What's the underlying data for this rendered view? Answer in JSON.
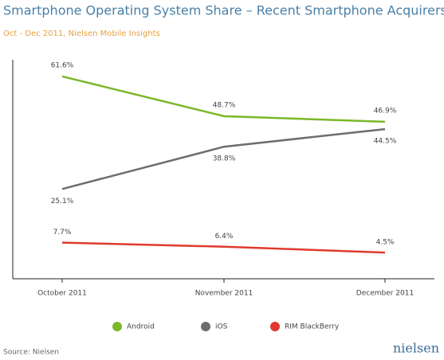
{
  "chart_data": {
    "type": "line",
    "title": "Smartphone Operating System Share – Recent Smartphone Acquirers",
    "subtitle": "Oct - Dec 2011, Nielsen Mobile Insights",
    "categories": [
      "October 2011",
      "November 2011",
      "December 2011"
    ],
    "series": [
      {
        "name": "Android",
        "color": "#7ab829",
        "values": [
          61.6,
          48.7,
          46.9
        ],
        "value_labels": [
          "61.6%",
          "48.7%",
          "46.9%"
        ]
      },
      {
        "name": "iOS",
        "color": "#6d6d6d",
        "values": [
          25.1,
          38.8,
          44.5
        ],
        "value_labels": [
          "25.1%",
          "38.8%",
          "44.5%"
        ]
      },
      {
        "name": "RIM BlackBerry",
        "color": "#e03a2e",
        "values": [
          7.7,
          6.4,
          4.5
        ],
        "value_labels": [
          "7.7%",
          "6.4%",
          "4.5%"
        ]
      }
    ],
    "ylim": [
      -4,
      67
    ],
    "source": "Source: Nielsen",
    "logo": "nielsen"
  }
}
